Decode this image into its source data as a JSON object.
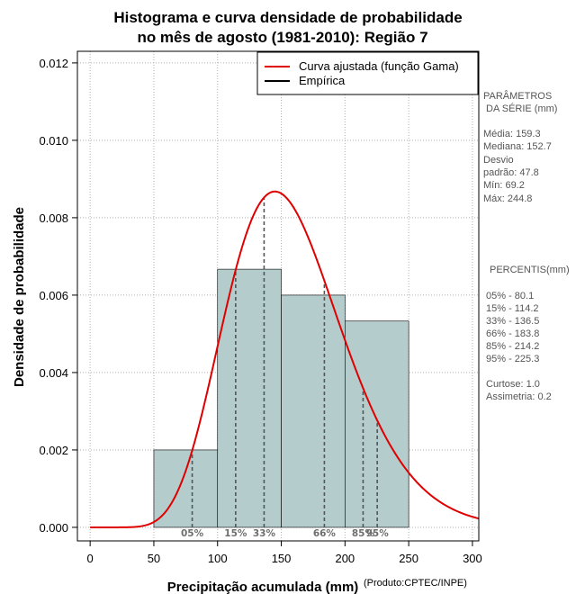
{
  "chart_data": {
    "type": "bar",
    "title_line1": "Histograma e curva densidade de probabilidade",
    "title_line2": "no mês de agosto (1981-2010): Região 7",
    "xlabel": "Precipitação acumulada (mm)",
    "ylabel": "Densidade de probabilidade",
    "credit": "(Produto:CPTEC/INPE)",
    "xlim": [
      -10,
      305
    ],
    "ylim": [
      -0.00035,
      0.0123
    ],
    "x_ticks": [
      0,
      50,
      100,
      150,
      200,
      250,
      300
    ],
    "y_ticks": [
      0.0,
      0.002,
      0.004,
      0.006,
      0.008,
      0.01,
      0.012
    ],
    "y_tick_labels": [
      "0.000",
      "0.002",
      "0.004",
      "0.006",
      "0.008",
      "0.010",
      "0.012"
    ],
    "grid": true,
    "bins": [
      {
        "x0": 50,
        "x1": 100,
        "density": 0.002
      },
      {
        "x0": 100,
        "x1": 150,
        "density": 0.00667
      },
      {
        "x0": 150,
        "x1": 200,
        "density": 0.006
      },
      {
        "x0": 200,
        "x1": 250,
        "density": 0.00533
      }
    ],
    "bar_color": "#b4cccc",
    "curve_color": "#e00000",
    "gamma": {
      "mean": 159.3,
      "sd": 47.8
    },
    "legend": {
      "position": "top-right",
      "items": [
        {
          "label": "Curva ajustada (função Gama)",
          "color": "#e00000"
        },
        {
          "label": "Empírica",
          "color": "#000000"
        }
      ]
    },
    "percentiles": [
      {
        "label": "05%",
        "value": 80.1
      },
      {
        "label": "15%",
        "value": 114.2
      },
      {
        "label": "33%",
        "value": 136.5
      },
      {
        "label": "66%",
        "value": 183.8
      },
      {
        "label": "85%",
        "value": 214.2
      },
      {
        "label": "95%",
        "value": 225.3
      }
    ]
  },
  "stats": {
    "params_title1": "PARÂMETROS",
    "params_title2": "DA SÉRIE (mm)",
    "lines": [
      "Média:  159.3",
      "Mediana:  152.7",
      "Desvio",
      "padrão:  47.8",
      "Mín:  69.2",
      "Máx:  244.8"
    ],
    "percentis_title": "PERCENTIS(mm)",
    "percentis": [
      "05% -  80.1",
      "15% -  114.2",
      "33% -  136.5",
      "66% -  183.8",
      "85% -  214.2",
      "95% -  225.3"
    ],
    "extra": [
      "Curtose:  1.0",
      "Assimetria:  0.2"
    ]
  }
}
